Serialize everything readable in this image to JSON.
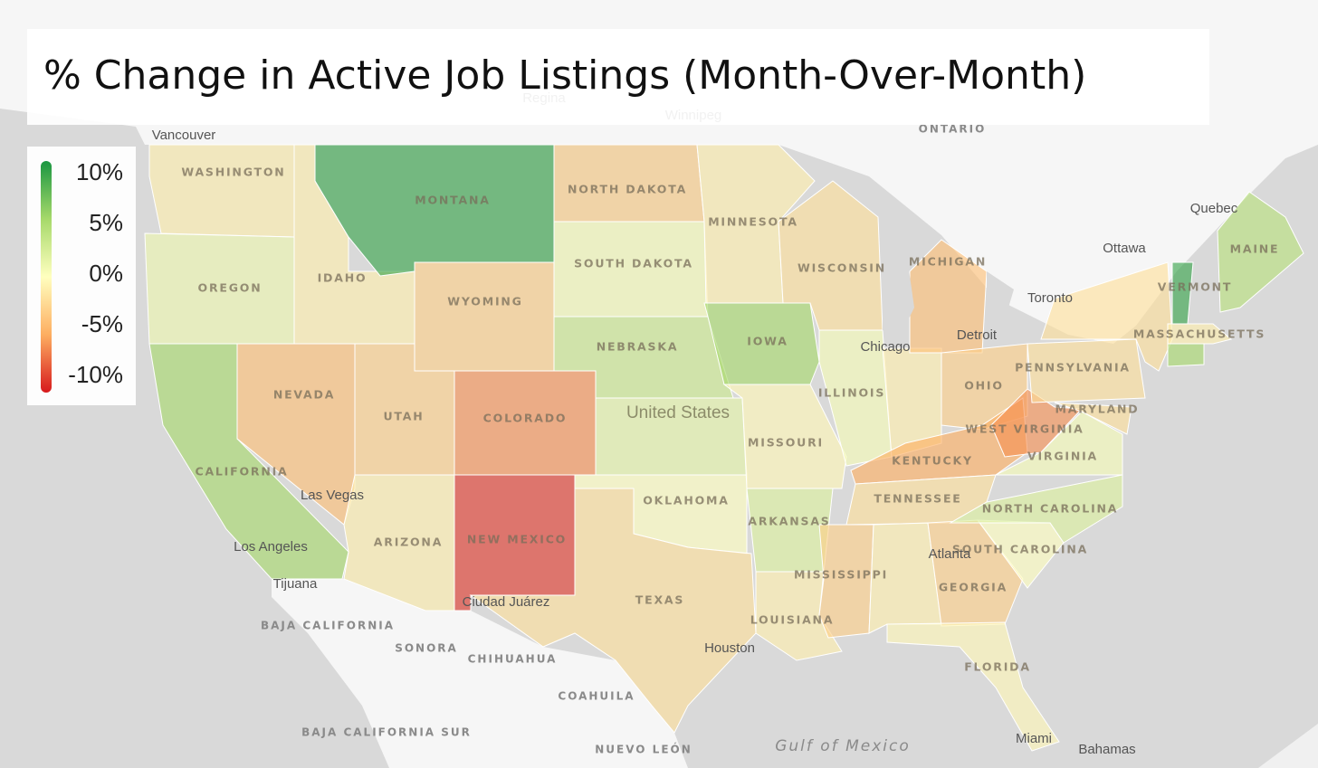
{
  "title": "% Change in Active Job Listings (Month-Over-Month)",
  "legend": {
    "range": [
      -10,
      10
    ],
    "colors": [
      "#d7191c",
      "#fdae61",
      "#ffffbf",
      "#a6d96a",
      "#1a9641"
    ],
    "ticks": [
      {
        "value": 10,
        "label": "10%"
      },
      {
        "value": 5,
        "label": "5%"
      },
      {
        "value": 0,
        "label": "0%"
      },
      {
        "value": -5,
        "label": "-5%"
      },
      {
        "value": -10,
        "label": "-10%"
      }
    ]
  },
  "states": [
    {
      "name": "WASHINGTON",
      "value": -1
    },
    {
      "name": "OREGON",
      "value": 1
    },
    {
      "name": "CALIFORNIA",
      "value": 5
    },
    {
      "name": "NEVADA",
      "value": -4
    },
    {
      "name": "IDAHO",
      "value": -1
    },
    {
      "name": "MONTANA",
      "value": 9
    },
    {
      "name": "WYOMING",
      "value": -3
    },
    {
      "name": "UTAH",
      "value": -3
    },
    {
      "name": "COLORADO",
      "value": -6
    },
    {
      "name": "ARIZONA",
      "value": -1
    },
    {
      "name": "NEW MEXICO",
      "value": -9
    },
    {
      "name": "NORTH DAKOTA",
      "value": -3
    },
    {
      "name": "SOUTH DAKOTA",
      "value": 0.5
    },
    {
      "name": "NEBRASKA",
      "value": 3
    },
    {
      "name": null,
      "value": 1.5
    },
    {
      "name": "OKLAHOMA",
      "value": 0
    },
    {
      "name": "TEXAS",
      "value": -2
    },
    {
      "name": "MINNESOTA",
      "value": -1
    },
    {
      "name": "IOWA",
      "value": 5
    },
    {
      "name": "MISSOURI",
      "value": -0.5
    },
    {
      "name": "ARKANSAS",
      "value": 2
    },
    {
      "name": "LOUISIANA",
      "value": -1
    },
    {
      "name": "WISCONSIN",
      "value": -2
    },
    {
      "name": "ILLINOIS",
      "value": 0.5
    },
    {
      "name": null,
      "value": -1
    },
    {
      "name": "MICHIGAN",
      "value": -4
    },
    {
      "name": "OHIO",
      "value": -3
    },
    {
      "name": "KENTUCKY",
      "value": -5
    },
    {
      "name": "WEST VIRGINIA",
      "value": -6
    },
    {
      "name": "TENNESSEE",
      "value": -2
    },
    {
      "name": "MISSISSIPPI",
      "value": -3
    },
    {
      "name": null,
      "value": -1
    },
    {
      "name": "GEORGIA",
      "value": -3
    },
    {
      "name": "FLORIDA",
      "value": -0.5
    },
    {
      "name": "SOUTH CAROLINA",
      "value": 0
    },
    {
      "name": "NORTH CAROLINA",
      "value": 2
    },
    {
      "name": "VIRGINIA",
      "value": 0.5
    },
    {
      "name": "MARYLAND",
      "value": -2
    },
    {
      "name": "PENNSYLVANIA",
      "value": -2
    },
    {
      "name": null,
      "value": -2
    },
    {
      "name": "VERMONT",
      "value": 9
    },
    {
      "name": "MAINE",
      "value": 4
    },
    {
      "name": "MASSACHUSETTS",
      "value": -1
    },
    {
      "name": null,
      "value": 5
    }
  ],
  "cities": [
    "Vancouver",
    "Regina",
    "Winnipeg",
    "Quebec",
    "Ottawa",
    "Toronto",
    "Chicago",
    "Detroit",
    "Los Angeles",
    "Las Vegas",
    "Tijuana",
    "Ciudad Juárez",
    "Atlanta",
    "Houston",
    "Miami",
    "Bahamas",
    "United States"
  ],
  "regions": [
    "ONTARIO",
    "BAJA CALIFORNIA",
    "SONORA",
    "CHIHUAHUA",
    "COAHUILA",
    "BAJA CALIFORNIA SUR",
    "NUEVO LEÓN",
    "Gulf of Mexico"
  ]
}
